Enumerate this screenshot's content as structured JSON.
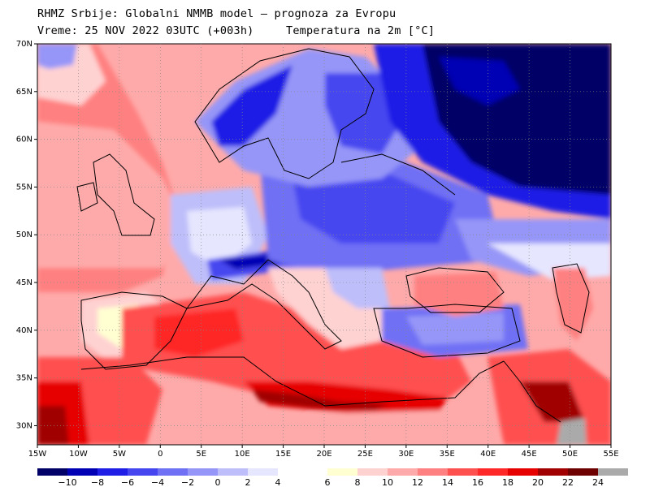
{
  "header": {
    "line1": "RHMZ Srbije: Globalni NMMB model — prognoza za Evropu",
    "line2": "Vreme: 25 NOV 2022 03UTC (+003h)",
    "field": "Temperatura na 2m [°C]"
  },
  "map": {
    "lon_range": [
      -15,
      55
    ],
    "lat_range": [
      28,
      70
    ],
    "lon_ticks": [
      "15W",
      "10W",
      "5W",
      "0",
      "5E",
      "10E",
      "15E",
      "20E",
      "25E",
      "30E",
      "35E",
      "40E",
      "45E",
      "50E",
      "55E"
    ],
    "lat_ticks": [
      "70N",
      "65N",
      "60N",
      "55N",
      "50N",
      "45N",
      "40N",
      "35N",
      "30N"
    ],
    "grid": true
  },
  "colorbar": {
    "labels": [
      "−10",
      "−8",
      "−6",
      "−4",
      "−2",
      "0",
      "2",
      "4",
      "6",
      "8",
      "10",
      "12",
      "14",
      "16",
      "18",
      "20",
      "22",
      "24"
    ],
    "colors": [
      "#000066",
      "#0000b4",
      "#1e1ee6",
      "#4646f0",
      "#7070f5",
      "#9696f8",
      "#bebefa",
      "#e6e6ff",
      "#ffffff",
      "#ffffd2",
      "#ffd2d2",
      "#ffaaaa",
      "#ff8080",
      "#ff5050",
      "#ff2828",
      "#e60000",
      "#a00000",
      "#6e0000",
      "#aaaaaa"
    ]
  }
}
